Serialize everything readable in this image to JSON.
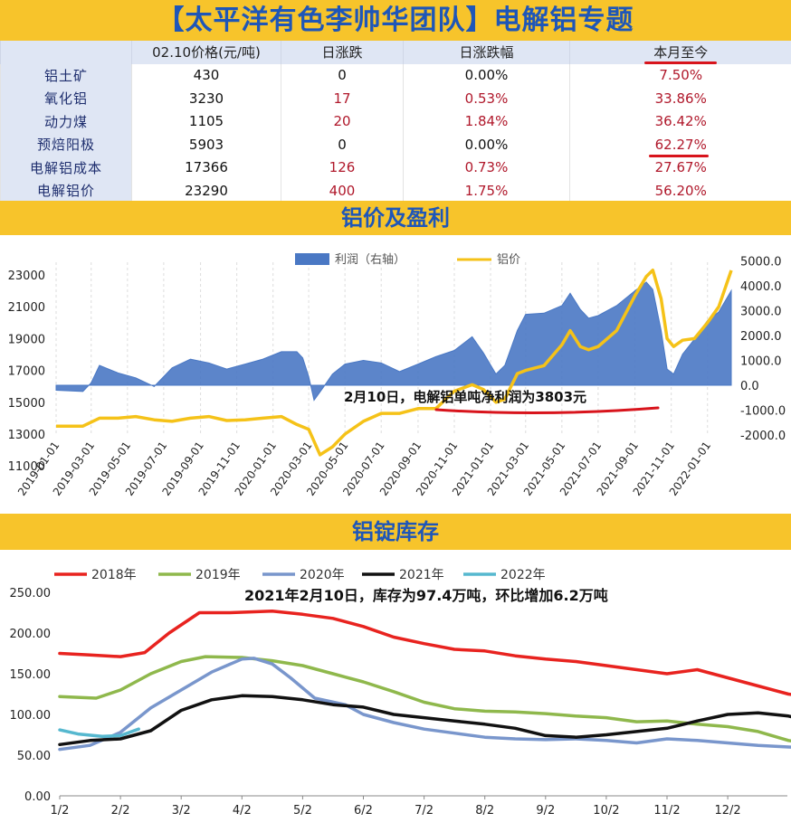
{
  "title": "【太平洋有色李帅华团队】电解铝专题",
  "table": {
    "headers": [
      "",
      "02.10价格(元/吨)",
      "日涨跌",
      "日涨跌幅",
      "本月至今"
    ],
    "rows": [
      {
        "name": "铝土矿",
        "price": "430",
        "chg": "0",
        "pct": "0.00%",
        "mtd": "7.50%"
      },
      {
        "name": "氧化铝",
        "price": "3230",
        "chg": "17",
        "pct": "0.53%",
        "mtd": "33.86%"
      },
      {
        "name": "动力煤",
        "price": "1105",
        "chg": "20",
        "pct": "1.84%",
        "mtd": "36.42%"
      },
      {
        "name": "预焙阳极",
        "price": "5903",
        "chg": "0",
        "pct": "0.00%",
        "mtd": "62.27%"
      },
      {
        "name": "电解铝成本",
        "price": "17366",
        "chg": "126",
        "pct": "0.73%",
        "mtd": "27.67%"
      },
      {
        "name": "电解铝价",
        "price": "23290",
        "chg": "400",
        "pct": "1.75%",
        "mtd": "56.20%"
      }
    ]
  },
  "section1_title": "铝价及盈利",
  "section2_title": "铝锭库存",
  "colors": {
    "banner": "#f7c42b",
    "title": "#1e56b8",
    "profit": "#4a78c4",
    "price": "#f5c218",
    "y2018": "#e8231f",
    "y2019": "#8fb84c",
    "y2020": "#7996cc",
    "y2021": "#111111",
    "y2022": "#56b8cf",
    "underline": "#d8141c"
  },
  "chart_data": [
    {
      "type": "area",
      "title": "",
      "legend": [
        "利润（右轴）",
        "铝价"
      ],
      "legend_position": "top",
      "annotation": {
        "prefix": "2月10日，",
        "text": "电解铝单吨净利润为3803元"
      },
      "x_ticks": [
        "2019-01-01",
        "2019-03-01",
        "2019-05-01",
        "2019-07-01",
        "2019-09-01",
        "2019-11-01",
        "2020-01-01",
        "2020-03-01",
        "2020-05-01",
        "2020-07-01",
        "2020-09-01",
        "2020-11-01",
        "2021-01-01",
        "2021-03-01",
        "2021-05-01",
        "2021-07-01",
        "2021-09-01",
        "2021-11-01",
        "2022-01-01"
      ],
      "y_left_ticks": [
        "23000",
        "21000",
        "19000",
        "17000",
        "15000",
        "13000",
        "11000"
      ],
      "y_right_ticks": [
        "5000.0",
        "4000.0",
        "3000.0",
        "2000.0",
        "1000.0",
        "0.0",
        "-1000.0",
        "-2000.0"
      ],
      "y_left_range": [
        11000,
        24000
      ],
      "y_right_range": [
        -2000,
        5000
      ],
      "series": [
        {
          "name": "利润（右轴）",
          "axis": "right",
          "points": [
            [
              "2019-01-01",
              -200
            ],
            [
              "2019-02-15",
              -250
            ],
            [
              "2019-03-01",
              100
            ],
            [
              "2019-03-15",
              800
            ],
            [
              "2019-04-15",
              500
            ],
            [
              "2019-05-15",
              300
            ],
            [
              "2019-06-15",
              -50
            ],
            [
              "2019-07-15",
              700
            ],
            [
              "2019-08-15",
              1050
            ],
            [
              "2019-09-15",
              900
            ],
            [
              "2019-10-15",
              650
            ],
            [
              "2019-11-15",
              850
            ],
            [
              "2019-12-15",
              1050
            ],
            [
              "2020-01-15",
              1350
            ],
            [
              "2020-02-10",
              1350
            ],
            [
              "2020-02-20",
              1100
            ],
            [
              "2020-03-01",
              350
            ],
            [
              "2020-03-10",
              -600
            ],
            [
              "2020-03-25",
              -100
            ],
            [
              "2020-04-10",
              450
            ],
            [
              "2020-05-01",
              850
            ],
            [
              "2020-06-01",
              1000
            ],
            [
              "2020-07-01",
              900
            ],
            [
              "2020-08-01",
              550
            ],
            [
              "2020-09-01",
              850
            ],
            [
              "2020-10-01",
              1150
            ],
            [
              "2020-11-01",
              1400
            ],
            [
              "2020-12-01",
              1950
            ],
            [
              "2020-12-20",
              1300
            ],
            [
              "2021-01-10",
              450
            ],
            [
              "2021-01-25",
              800
            ],
            [
              "2021-02-15",
              2200
            ],
            [
              "2021-03-01",
              2850
            ],
            [
              "2021-04-01",
              2900
            ],
            [
              "2021-05-01",
              3200
            ],
            [
              "2021-05-15",
              3700
            ],
            [
              "2021-06-01",
              3050
            ],
            [
              "2021-06-15",
              2700
            ],
            [
              "2021-07-01",
              2800
            ],
            [
              "2021-08-01",
              3200
            ],
            [
              "2021-09-01",
              3800
            ],
            [
              "2021-09-20",
              4150
            ],
            [
              "2021-10-01",
              3850
            ],
            [
              "2021-10-15",
              2200
            ],
            [
              "2021-10-25",
              650
            ],
            [
              "2021-11-05",
              450
            ],
            [
              "2021-11-20",
              1250
            ],
            [
              "2021-12-10",
              1850
            ],
            [
              "2022-01-01",
              2600
            ],
            [
              "2022-01-20",
              2950
            ],
            [
              "2022-02-10",
              3803
            ]
          ]
        },
        {
          "name": "铝价",
          "axis": "left",
          "points": [
            [
              "2019-01-01",
              13500
            ],
            [
              "2019-02-15",
              13500
            ],
            [
              "2019-03-15",
              14000
            ],
            [
              "2019-04-15",
              14000
            ],
            [
              "2019-05-15",
              14100
            ],
            [
              "2019-06-15",
              13900
            ],
            [
              "2019-07-15",
              13800
            ],
            [
              "2019-08-15",
              14000
            ],
            [
              "2019-09-15",
              14100
            ],
            [
              "2019-10-15",
              13850
            ],
            [
              "2019-11-15",
              13900
            ],
            [
              "2019-12-15",
              14000
            ],
            [
              "2020-01-15",
              14100
            ],
            [
              "2020-02-10",
              13600
            ],
            [
              "2020-03-01",
              13300
            ],
            [
              "2020-03-20",
              11700
            ],
            [
              "2020-04-10",
              12200
            ],
            [
              "2020-05-01",
              13000
            ],
            [
              "2020-06-01",
              13800
            ],
            [
              "2020-07-01",
              14300
            ],
            [
              "2020-08-01",
              14300
            ],
            [
              "2020-09-01",
              14600
            ],
            [
              "2020-10-01",
              14600
            ],
            [
              "2020-11-01",
              15700
            ],
            [
              "2020-12-01",
              16100
            ],
            [
              "2020-12-20",
              15800
            ],
            [
              "2021-01-10",
              15000
            ],
            [
              "2021-01-25",
              15200
            ],
            [
              "2021-02-15",
              16800
            ],
            [
              "2021-03-01",
              17000
            ],
            [
              "2021-04-01",
              17300
            ],
            [
              "2021-05-01",
              18600
            ],
            [
              "2021-05-15",
              19500
            ],
            [
              "2021-06-01",
              18500
            ],
            [
              "2021-06-15",
              18300
            ],
            [
              "2021-07-01",
              18500
            ],
            [
              "2021-08-01",
              19500
            ],
            [
              "2021-09-01",
              21700
            ],
            [
              "2021-09-20",
              22900
            ],
            [
              "2021-10-01",
              23300
            ],
            [
              "2021-10-15",
              21500
            ],
            [
              "2021-10-25",
              19000
            ],
            [
              "2021-11-05",
              18500
            ],
            [
              "2021-11-20",
              18900
            ],
            [
              "2021-12-10",
              19000
            ],
            [
              "2022-01-01",
              20000
            ],
            [
              "2022-01-20",
              21000
            ],
            [
              "2022-02-10",
              23290
            ]
          ]
        }
      ]
    },
    {
      "type": "line",
      "title": "",
      "annotation": "2021年2月10日，库存为97.4万吨，环比增加6.2万吨",
      "legend_position": "top",
      "x_ticks": [
        "1/2",
        "2/2",
        "3/2",
        "4/2",
        "5/2",
        "6/2",
        "7/2",
        "8/2",
        "9/2",
        "10/2",
        "11/2",
        "12/2"
      ],
      "y_ticks": [
        "250.00",
        "200.00",
        "150.00",
        "100.00",
        "50.00",
        "0.00"
      ],
      "ylim": [
        0,
        250
      ],
      "series": [
        {
          "name": "2018年",
          "values": [
            [
              0,
              175
            ],
            [
              0.5,
              173
            ],
            [
              1,
              171
            ],
            [
              1.4,
              176
            ],
            [
              1.8,
              200
            ],
            [
              2.3,
              225
            ],
            [
              2.8,
              225
            ],
            [
              3.5,
              227
            ],
            [
              4,
              223
            ],
            [
              4.5,
              218
            ],
            [
              5,
              208
            ],
            [
              5.5,
              195
            ],
            [
              6,
              187
            ],
            [
              6.5,
              180
            ],
            [
              7,
              178
            ],
            [
              7.5,
              172
            ],
            [
              8,
              168
            ],
            [
              8.5,
              165
            ],
            [
              9,
              160
            ],
            [
              9.5,
              155
            ],
            [
              10,
              150
            ],
            [
              10.5,
              155
            ],
            [
              11,
              145
            ],
            [
              11.5,
              135
            ],
            [
              12,
              125
            ],
            [
              12.8,
              118
            ]
          ]
        },
        {
          "name": "2019年",
          "values": [
            [
              0,
              122
            ],
            [
              0.6,
              120
            ],
            [
              1,
              130
            ],
            [
              1.5,
              150
            ],
            [
              2,
              165
            ],
            [
              2.4,
              171
            ],
            [
              3,
              170
            ],
            [
              3.5,
              166
            ],
            [
              4,
              160
            ],
            [
              4.5,
              150
            ],
            [
              5,
              140
            ],
            [
              5.5,
              128
            ],
            [
              6,
              115
            ],
            [
              6.5,
              107
            ],
            [
              7,
              104
            ],
            [
              7.5,
              103
            ],
            [
              8,
              101
            ],
            [
              8.5,
              98
            ],
            [
              9,
              96
            ],
            [
              9.5,
              91
            ],
            [
              10,
              92
            ],
            [
              10.5,
              88
            ],
            [
              11,
              85
            ],
            [
              11.5,
              79
            ],
            [
              12,
              68
            ],
            [
              12.8,
              59
            ]
          ]
        },
        {
          "name": "2020年",
          "values": [
            [
              0,
              57
            ],
            [
              0.5,
              62
            ],
            [
              1,
              78
            ],
            [
              1.5,
              108
            ],
            [
              2,
              130
            ],
            [
              2.5,
              152
            ],
            [
              3,
              168
            ],
            [
              3.2,
              169
            ],
            [
              3.5,
              162
            ],
            [
              3.8,
              145
            ],
            [
              4.2,
              120
            ],
            [
              4.7,
              112
            ],
            [
              5,
              100
            ],
            [
              5.5,
              90
            ],
            [
              6,
              82
            ],
            [
              6.5,
              77
            ],
            [
              7,
              72
            ],
            [
              7.5,
              70
            ],
            [
              8,
              69
            ],
            [
              8.5,
              70
            ],
            [
              9,
              68
            ],
            [
              9.5,
              65
            ],
            [
              10,
              70
            ],
            [
              10.5,
              68
            ],
            [
              11,
              65
            ],
            [
              11.5,
              62
            ],
            [
              12,
              60
            ],
            [
              12.8,
              57
            ]
          ]
        },
        {
          "name": "2021年",
          "values": [
            [
              0,
              63
            ],
            [
              0.5,
              68
            ],
            [
              1,
              70
            ],
            [
              1.5,
              80
            ],
            [
              2,
              105
            ],
            [
              2.5,
              118
            ],
            [
              3,
              123
            ],
            [
              3.5,
              122
            ],
            [
              4,
              118
            ],
            [
              4.5,
              112
            ],
            [
              5,
              109
            ],
            [
              5.5,
              100
            ],
            [
              6,
              96
            ],
            [
              6.5,
              92
            ],
            [
              7,
              88
            ],
            [
              7.5,
              83
            ],
            [
              8,
              74
            ],
            [
              8.5,
              72
            ],
            [
              9,
              75
            ],
            [
              9.5,
              79
            ],
            [
              10,
              83
            ],
            [
              10.5,
              92
            ],
            [
              11,
              100
            ],
            [
              11.5,
              102
            ],
            [
              12,
              98
            ],
            [
              12.5,
              90
            ],
            [
              12.8,
              82
            ]
          ]
        },
        {
          "name": "2022年",
          "values": [
            [
              0,
              81
            ],
            [
              0.3,
              76
            ],
            [
              0.7,
              73
            ],
            [
              1,
              74
            ],
            [
              1.3,
              82
            ]
          ]
        }
      ]
    }
  ]
}
